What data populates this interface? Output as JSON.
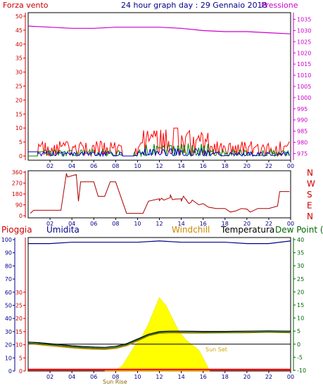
{
  "chart_data": [
    {
      "type": "line",
      "title": "24 hour graph day : 29 Gennaio 2018",
      "left_label": "Forza vento",
      "right_label": "Pressione",
      "x_ticks": [
        "02",
        "04",
        "06",
        "08",
        "10",
        "12",
        "14",
        "16",
        "18",
        "20",
        "22",
        "00"
      ],
      "y_ticks": [
        "0",
        "5",
        "10",
        "15",
        "20",
        "25",
        "30",
        "35",
        "40",
        "45",
        "50"
      ],
      "ylim": [
        0,
        50
      ],
      "y2_ticks": [
        "975",
        "980",
        "985",
        "990",
        "995",
        "1000",
        "1005",
        "1010",
        "1015",
        "1020",
        "1025",
        "1030",
        "1035"
      ],
      "y2lim": [
        972,
        1038
      ],
      "pressure": {
        "name": "Pressione",
        "color": "#cc00cc",
        "x": [
          0,
          2,
          4,
          6,
          8,
          10,
          12,
          14,
          16,
          18,
          20,
          22,
          24
        ],
        "y": [
          1032,
          1031.5,
          1031,
          1031,
          1031.5,
          1031.5,
          1031.5,
          1031,
          1030,
          1029.5,
          1029.5,
          1029,
          1028.5
        ]
      },
      "wind_series": [
        {
          "name": "gust",
          "color": "#ff0000"
        },
        {
          "name": "average",
          "color": "#008800"
        },
        {
          "name": "speed",
          "color": "#0000cc"
        }
      ]
    },
    {
      "type": "line",
      "left_ticks": [
        "0",
        "90",
        "180",
        "270",
        "360"
      ],
      "ylim": [
        0,
        360
      ],
      "right_labels": [
        "N",
        "W",
        "S",
        "E",
        "N"
      ],
      "x_ticks": [
        "02",
        "04",
        "06",
        "08",
        "10",
        "12",
        "14",
        "16",
        "18",
        "20",
        "22",
        "00"
      ],
      "direction": {
        "color": "#aa0000",
        "x": [
          0.2,
          0.5,
          3.0,
          3.5,
          3.6,
          4.4,
          4.6,
          4.8,
          6.0,
          6.4,
          7.0,
          7.5,
          8.0,
          9.0,
          9.5,
          10.5,
          11.0,
          12.0,
          13.0,
          14.0,
          14.5,
          15.0,
          15.6,
          16.0,
          16.5,
          17.2,
          18.0,
          18.5,
          19.0,
          19.5,
          20.0,
          20.3,
          21.0,
          21.5,
          22.0,
          22.8,
          23.0,
          23.9
        ],
        "y": [
          20,
          45,
          45,
          350,
          320,
          340,
          120,
          280,
          280,
          160,
          160,
          280,
          280,
          20,
          20,
          20,
          120,
          140,
          150,
          140,
          130,
          130,
          90,
          100,
          70,
          60,
          60,
          30,
          40,
          60,
          55,
          30,
          60,
          60,
          60,
          80,
          200,
          200
        ]
      }
    },
    {
      "type": "line",
      "legend": [
        "Pioggia",
        "Umidita",
        "Windchill",
        "Temperatura",
        "Dew Point (°C"
      ],
      "left_ticks": [
        "0",
        "10",
        "20",
        "30",
        "40",
        "50",
        "60",
        "70",
        "80",
        "90",
        "100"
      ],
      "ylim": [
        0,
        100
      ],
      "mid_ticks": [
        "0",
        "5",
        "10",
        "15",
        "20",
        "25",
        "30"
      ],
      "y2_ticks": [
        "-10",
        "-5",
        "0",
        "5",
        "10",
        "15",
        "20",
        "25",
        "30",
        "35",
        "40"
      ],
      "y2lim": [
        -10,
        40
      ],
      "x_ticks": [
        "02",
        "04",
        "06",
        "08",
        "10",
        "12",
        "14",
        "16",
        "18",
        "20",
        "22",
        "00"
      ],
      "annotations": [
        "Sun Rise",
        "Sun Set"
      ],
      "humidity": {
        "name": "Umidita",
        "color": "#000088",
        "x": [
          0,
          2,
          4,
          6,
          8,
          9,
          10,
          12,
          14,
          16,
          18,
          20,
          22,
          24
        ],
        "y": [
          97,
          97,
          98,
          98,
          98,
          98,
          98,
          99,
          98,
          98,
          98,
          97,
          97,
          99
        ]
      },
      "temperature": {
        "name": "Temperatura",
        "color": "#000000",
        "x": [
          0,
          1,
          2,
          3,
          4,
          5,
          6,
          7,
          8,
          9,
          10,
          11,
          12,
          13,
          14,
          16,
          18,
          20,
          22,
          24
        ],
        "y": [
          0.8,
          0.6,
          0.2,
          -0.2,
          -0.6,
          -0.9,
          -1.1,
          -1.2,
          -0.8,
          0.2,
          2.0,
          3.8,
          4.8,
          5.0,
          5.0,
          4.9,
          4.9,
          5.0,
          5.1,
          5.0
        ]
      },
      "windchill": {
        "name": "Windchill",
        "color": "#cc8800",
        "x": [
          0,
          1,
          2,
          3,
          4,
          5,
          6,
          7,
          8,
          9,
          10,
          11,
          12,
          13,
          14,
          16,
          18,
          20,
          22,
          24
        ],
        "y": [
          0.3,
          -0.2,
          -0.6,
          -1.0,
          -1.4,
          -1.7,
          -1.9,
          -2.0,
          -1.6,
          -0.6,
          1.2,
          3.2,
          4.2,
          4.4,
          4.3,
          4.3,
          4.4,
          4.4,
          4.6,
          4.4
        ]
      },
      "dewpoint": {
        "name": "Dew Point",
        "color": "#006600",
        "x": [
          0,
          1,
          2,
          3,
          4,
          5,
          6,
          7,
          8,
          9,
          10,
          11,
          12,
          13,
          14,
          16,
          18,
          20,
          22,
          24
        ],
        "y": [
          0.4,
          0.2,
          -0.2,
          -0.6,
          -1.0,
          -1.3,
          -1.5,
          -1.6,
          -1.2,
          -0.2,
          1.6,
          3.4,
          4.4,
          4.6,
          4.6,
          4.5,
          4.5,
          4.6,
          4.7,
          4.6
        ]
      },
      "dewpoint_ref": {
        "value": 0,
        "color": "#000000"
      },
      "solar": {
        "color": "#ffff00",
        "x": [
          7.0,
          8.0,
          8.6,
          9.2,
          9.8,
          10.4,
          11.0,
          11.6,
          12.0,
          12.6,
          13.2,
          13.8,
          14.4,
          15.0,
          15.6,
          16.0,
          16.6
        ],
        "y": [
          0,
          0.5,
          2,
          6,
          10,
          13,
          18,
          24,
          28,
          25,
          20,
          15,
          12,
          10,
          8,
          5,
          0
        ]
      },
      "rain": {
        "name": "Pioggia",
        "color": "#ff0000",
        "value": 0
      }
    }
  ]
}
